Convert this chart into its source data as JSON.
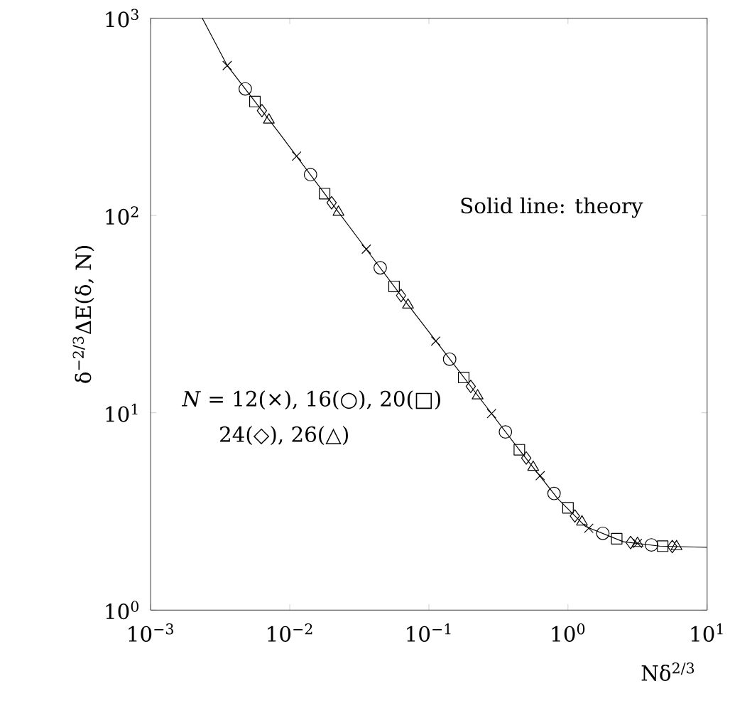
{
  "chart_data": {
    "type": "scatter",
    "log": "xy",
    "xlabel": "Nδ$^{2/3}$",
    "ylabel": "δ$^{−2/3}$ΔE(δ, N)",
    "xlim": [
      0.001,
      10
    ],
    "ylim": [
      1,
      1000
    ],
    "xticks": [
      {
        "value": 0.001,
        "label": "10$^{−3}$"
      },
      {
        "value": 0.01,
        "label": "10$^{−2}$"
      },
      {
        "value": 0.1,
        "label": "10$^{−1}$"
      },
      {
        "value": 1,
        "label": "10$^{0}$"
      },
      {
        "value": 10,
        "label": "10$^{1}$"
      }
    ],
    "yticks": [
      {
        "value": 1,
        "label": "10$^{0}$"
      },
      {
        "value": 10,
        "label": "10$^{1}$"
      },
      {
        "value": 100,
        "label": "10$^{2}$"
      },
      {
        "value": 1000,
        "label": "10$^{3}$"
      }
    ],
    "annotations": [
      "Solid line: theory",
      "*N* = 12(×), 16(○), 20(□)",
      "24(◇), 26(△)"
    ],
    "series": [
      {
        "type": "line",
        "color": "#000000",
        "marker": "none",
        "x": [
          0.00235,
          0.00356,
          0.00836,
          0.0167,
          0.0334,
          0.0668,
          0.0989,
          0.212,
          0.454,
          0.845,
          1.34,
          2.5,
          4.56,
          10
        ],
        "values": [
          1000,
          574,
          263,
          137,
          71.4,
          37.2,
          26.0,
          12.9,
          6.4,
          3.67,
          2.65,
          2.22,
          2.11,
          2.08
        ]
      },
      {
        "color": "#000000",
        "marker": "cross",
        "x": [
          0.00355,
          0.0112,
          0.0355,
          0.112,
          0.282,
          0.631,
          1.41,
          3.16
        ],
        "values": [
          575,
          200,
          67.5,
          23.1,
          9.9,
          4.8,
          2.6,
          2.18
        ]
      },
      {
        "color": "#000000",
        "marker": "circle",
        "x": [
          0.00479,
          0.0141,
          0.0447,
          0.141,
          0.355,
          0.794,
          1.78,
          3.98
        ],
        "values": [
          438,
          161,
          54.3,
          18.7,
          8.0,
          3.9,
          2.45,
          2.14
        ]
      },
      {
        "color": "#000000",
        "marker": "square",
        "x": [
          0.00562,
          0.0178,
          0.0562,
          0.178,
          0.447,
          1.0,
          2.24,
          4.79
        ],
        "values": [
          378,
          129,
          43.7,
          15.1,
          6.5,
          3.3,
          2.3,
          2.11
        ]
      },
      {
        "color": "#000000",
        "marker": "diamond",
        "x": [
          0.00631,
          0.02,
          0.0631,
          0.2,
          0.501,
          1.12,
          2.82,
          5.62
        ],
        "values": [
          340,
          116,
          39.3,
          13.6,
          5.9,
          3.0,
          2.2,
          2.1
        ]
      },
      {
        "color": "#000000",
        "marker": "triangle",
        "x": [
          0.00708,
          0.0224,
          0.0708,
          0.224,
          0.562,
          1.26,
          3.16,
          6.03
        ],
        "values": [
          305,
          104,
          35.2,
          12.2,
          5.3,
          2.8,
          2.18,
          2.1
        ]
      }
    ]
  }
}
